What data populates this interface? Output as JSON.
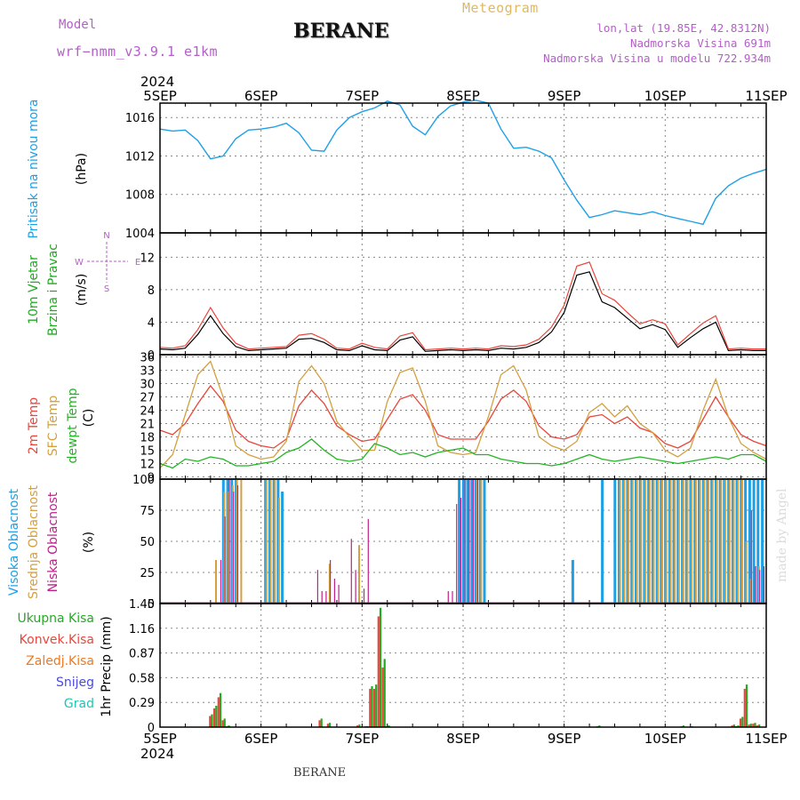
{
  "header": {
    "model_label": "Model",
    "model_name": "wrf−nmm_v3.9.1  e1km",
    "station": "BERANE",
    "meteogram_label": "Meteogram",
    "coords": "lon,lat (19.85E, 42.8312N)",
    "elevation": "Nadmorska Visina 691m",
    "model_elevation": "Nadmorska Visina u modelu 722.934m"
  },
  "footer": {
    "station": "BERANE",
    "made_by": "made by Angel"
  },
  "time_axis": {
    "year": "2024",
    "ticks": [
      "5SEP",
      "6SEP",
      "7SEP",
      "8SEP",
      "9SEP",
      "10SEP",
      "11SEP"
    ]
  },
  "colors": {
    "pressure": "#1ea0e6",
    "temp2m": "#e8463c",
    "sfc_temp": "#d4a040",
    "dewpoint": "#22b422",
    "high_cloud": "#1ea0e6",
    "mid_cloud": "#d4a040",
    "low_cloud": "#c0208c",
    "total_precip": "#22aa22",
    "conv_precip": "#e8463c",
    "frozen_precip": "#f07820",
    "snow": "#4a4ae0",
    "hail": "#22c4b4",
    "wind_label": "#22aa22",
    "wind_compass": "#b45ec9"
  },
  "panel_labels": {
    "pressure": [
      "Pritisak na nivou mora",
      "(hPa)"
    ],
    "wind": [
      "10m Vjetar",
      "Brzina i Pravac",
      "(m/s)"
    ],
    "compass": [
      "N",
      "W",
      "E",
      "S"
    ],
    "temp": [
      "2m Temp",
      "SFC Temp",
      "dewpt Temp",
      "(C)"
    ],
    "cloud": [
      "Visoka Oblacnost",
      "Srednja Oblacnost",
      "Niska Oblacnost",
      "(%)"
    ],
    "precip_legend": [
      "Ukupna Kisa",
      "Konvek.Kisa",
      "Zaledj.Kisa",
      "Snijeg",
      "Grad"
    ],
    "precip_unit": "1hr Precip (mm)"
  },
  "chart_data": [
    {
      "type": "line",
      "panel": "pressure",
      "ylabel": "Pritisak na nivou mora (hPa)",
      "y_tick_labels": [
        "1004",
        "1008",
        "1012",
        "1016"
      ],
      "ylim": [
        1004,
        1017.5
      ],
      "x": [
        0,
        3,
        6,
        9,
        12,
        15,
        18,
        21,
        24,
        27,
        30,
        33,
        36,
        39,
        42,
        45,
        48,
        51,
        54,
        57,
        60,
        63,
        66,
        69,
        72,
        75,
        78,
        81,
        84,
        87,
        90,
        93,
        96,
        99,
        102,
        105,
        108,
        111,
        114,
        117,
        120,
        123,
        126,
        129,
        132,
        135,
        138,
        141,
        144
      ],
      "series": [
        {
          "name": "Pritisak na nivou mora",
          "values": [
            1014.8,
            1014.6,
            1014.7,
            1013.6,
            1011.7,
            1012.0,
            1013.8,
            1014.7,
            1014.8,
            1015.0,
            1015.4,
            1014.4,
            1012.6,
            1012.5,
            1014.7,
            1016.0,
            1016.6,
            1017.0,
            1017.7,
            1017.3,
            1015.1,
            1014.2,
            1016.1,
            1017.2,
            1017.6,
            1017.8,
            1017.5,
            1014.8,
            1012.8,
            1012.9,
            1012.5,
            1011.8,
            1009.5,
            1007.4,
            1005.6,
            1005.9,
            1006.3,
            1006.1,
            1005.9,
            1006.2,
            1005.8,
            1005.5,
            1005.2,
            1004.9,
            1007.6,
            1008.9,
            1009.7,
            1010.2,
            1010.6
          ]
        }
      ],
      "grid": true
    },
    {
      "type": "line",
      "panel": "wind",
      "ylabel": "10m Vjetar Brzina i Pravac (m/s)",
      "y_tick_labels": [
        "0",
        "4",
        "8",
        "12"
      ],
      "ylim": [
        0,
        15
      ],
      "x": [
        0,
        3,
        6,
        9,
        12,
        15,
        18,
        21,
        24,
        27,
        30,
        33,
        36,
        39,
        42,
        45,
        48,
        51,
        54,
        57,
        60,
        63,
        66,
        69,
        72,
        75,
        78,
        81,
        84,
        87,
        90,
        93,
        96,
        99,
        102,
        105,
        108,
        111,
        114,
        117,
        120,
        123,
        126,
        129,
        132,
        135,
        138,
        141,
        144
      ],
      "series": [
        {
          "name": "10m Vjetar",
          "values": [
            0.7,
            0.6,
            0.8,
            2.5,
            4.8,
            2.6,
            1.0,
            0.5,
            0.6,
            0.7,
            0.8,
            1.9,
            2.0,
            1.5,
            0.6,
            0.5,
            1.1,
            0.6,
            0.5,
            1.8,
            2.2,
            0.4,
            0.5,
            0.6,
            0.5,
            0.6,
            0.5,
            0.8,
            0.7,
            0.9,
            1.5,
            2.8,
            5.2,
            9.8,
            10.2,
            6.5,
            5.8,
            4.5,
            3.2,
            3.7,
            3.1,
            0.9,
            2.1,
            3.2,
            4.0,
            0.5,
            0.6,
            0.5,
            0.5
          ]
        },
        {
          "name": "10m Vjetar",
          "values": [
            0.9,
            0.8,
            1.1,
            3.1,
            5.8,
            3.3,
            1.4,
            0.7,
            0.8,
            0.9,
            1.0,
            2.4,
            2.6,
            1.9,
            0.8,
            0.7,
            1.4,
            0.9,
            0.7,
            2.3,
            2.7,
            0.6,
            0.7,
            0.8,
            0.7,
            0.8,
            0.7,
            1.1,
            1.0,
            1.2,
            1.9,
            3.4,
            6.1,
            10.9,
            11.4,
            7.5,
            6.7,
            5.2,
            3.8,
            4.3,
            3.8,
            1.2,
            2.6,
            3.9,
            4.8,
            0.7,
            0.8,
            0.7,
            0.7
          ]
        }
      ],
      "grid": true
    },
    {
      "type": "line",
      "panel": "temperature",
      "ylabel": "(C)",
      "y_tick_labels": [
        "9",
        "12",
        "15",
        "18",
        "21",
        "24",
        "27",
        "30",
        "33",
        "36"
      ],
      "ylim": [
        8.5,
        36.5
      ],
      "x": [
        0,
        3,
        6,
        9,
        12,
        15,
        18,
        21,
        24,
        27,
        30,
        33,
        36,
        39,
        42,
        45,
        48,
        51,
        54,
        57,
        60,
        63,
        66,
        69,
        72,
        75,
        78,
        81,
        84,
        87,
        90,
        93,
        96,
        99,
        102,
        105,
        108,
        111,
        114,
        117,
        120,
        123,
        126,
        129,
        132,
        135,
        138,
        141,
        144
      ],
      "series": [
        {
          "name": "2m Temp",
          "values": [
            19.5,
            18.5,
            21,
            25.5,
            29.5,
            26,
            19.5,
            17,
            16,
            15.5,
            17.5,
            25,
            28.5,
            25.5,
            20.5,
            18.5,
            17,
            17.5,
            22,
            26.5,
            27.5,
            24,
            18.5,
            17.5,
            17.5,
            17.5,
            21.5,
            26.5,
            28.5,
            26,
            20.5,
            18,
            17.5,
            18.5,
            22.5,
            23,
            21,
            22.5,
            20,
            19,
            16.5,
            15.5,
            17,
            22,
            27,
            22.5,
            18.5,
            17,
            16
          ]
        },
        {
          "name": "SFC Temp",
          "values": [
            11,
            14,
            23,
            32,
            35,
            27,
            16,
            14,
            13,
            13.5,
            17,
            30.5,
            34,
            30,
            21.5,
            18,
            15,
            15,
            26,
            32.5,
            33.5,
            26,
            16,
            14.5,
            14,
            14.5,
            22.5,
            32,
            34,
            28.5,
            18,
            16,
            15,
            17,
            23.5,
            25.5,
            22.5,
            25,
            21,
            19,
            15,
            13.5,
            15.5,
            24,
            31,
            22.5,
            16.5,
            14.5,
            13
          ]
        },
        {
          "name": "dewpt Temp",
          "values": [
            12,
            11,
            13,
            12.5,
            13.5,
            13,
            11.5,
            11.5,
            12,
            12.5,
            14.5,
            15.5,
            17.5,
            15,
            13,
            12.5,
            13,
            16.5,
            15.5,
            14,
            14.5,
            13.5,
            14.5,
            15,
            15.5,
            14,
            14,
            13,
            12.5,
            12,
            12,
            11.5,
            12,
            13,
            14,
            13,
            12.5,
            13,
            13.5,
            13,
            12.5,
            12,
            12.5,
            13,
            13.5,
            13,
            14,
            14,
            12.5
          ]
        }
      ],
      "grid": true
    },
    {
      "type": "bar",
      "panel": "cloud",
      "ylabel": "(%)",
      "y_tick_labels": [
        "0",
        "25",
        "50",
        "75",
        "100"
      ],
      "ylim": [
        0,
        100
      ],
      "x": [
        12,
        13,
        14,
        15,
        16,
        17,
        18,
        19,
        20,
        21,
        22,
        25,
        26,
        27,
        28,
        29,
        37,
        38,
        39,
        40,
        41,
        42,
        45,
        46,
        47,
        48,
        49,
        51,
        52,
        53,
        57,
        68,
        69,
        70,
        71,
        72,
        73,
        74,
        75,
        76,
        77,
        78,
        79,
        98,
        105,
        108,
        109,
        110,
        111,
        112,
        113,
        114,
        115,
        116,
        117,
        118,
        119,
        120,
        121,
        122,
        123,
        124,
        125,
        126,
        127,
        128,
        129,
        130,
        131,
        132,
        133,
        134,
        135,
        136,
        137,
        138,
        139,
        140,
        141,
        142,
        143
      ],
      "series": [
        {
          "name": "Visoka Oblacnost",
          "values": [
            0,
            0,
            0,
            100,
            100,
            100,
            100,
            0,
            0,
            0,
            0,
            100,
            100,
            100,
            100,
            90,
            0,
            0,
            0,
            0,
            0,
            0,
            0,
            0,
            0,
            0,
            0,
            0,
            0,
            0,
            0,
            0,
            0,
            0,
            100,
            100,
            100,
            100,
            100,
            100,
            100,
            0,
            0,
            35,
            100,
            100,
            100,
            100,
            100,
            100,
            100,
            100,
            100,
            100,
            100,
            100,
            100,
            100,
            100,
            100,
            100,
            100,
            100,
            100,
            100,
            100,
            100,
            100,
            100,
            100,
            100,
            100,
            100,
            100,
            100,
            100,
            100,
            100,
            100,
            100,
            100
          ]
        },
        {
          "name": "Srednja Oblacnost",
          "values": [
            0,
            35,
            0,
            90,
            90,
            95,
            100,
            100,
            0,
            0,
            0,
            100,
            100,
            100,
            85,
            0,
            0,
            0,
            0,
            32,
            0,
            0,
            0,
            0,
            47,
            0,
            0,
            0,
            0,
            0,
            0,
            0,
            0,
            0,
            0,
            0,
            0,
            0,
            100,
            100,
            0,
            0,
            0,
            0,
            0,
            0,
            100,
            100,
            100,
            100,
            100,
            100,
            100,
            100,
            100,
            100,
            100,
            100,
            100,
            100,
            100,
            100,
            100,
            100,
            100,
            100,
            100,
            100,
            100,
            100,
            100,
            100,
            100,
            100,
            100,
            100,
            50,
            20,
            0,
            30,
            0
          ]
        },
        {
          "name": "Niska Oblacnost",
          "values": [
            0,
            0,
            35,
            70,
            100,
            90,
            95,
            0,
            0,
            0,
            0,
            0,
            0,
            0,
            0,
            0,
            27,
            10,
            10,
            35,
            20,
            15,
            52,
            27,
            0,
            12,
            68,
            0,
            0,
            0,
            0,
            10,
            10,
            80,
            85,
            100,
            100,
            100,
            100,
            0,
            0,
            0,
            0,
            0,
            0,
            0,
            0,
            0,
            0,
            0,
            0,
            0,
            0,
            0,
            0,
            0,
            0,
            0,
            0,
            0,
            0,
            0,
            0,
            0,
            0,
            0,
            0,
            0,
            0,
            0,
            0,
            0,
            0,
            0,
            0,
            0,
            0,
            75,
            30,
            27,
            30
          ]
        }
      ]
    },
    {
      "type": "bar",
      "panel": "precip",
      "ylabel": "1hr Precip (mm)",
      "y_tick_labels": [
        "0",
        "0.29",
        "0.58",
        "0.87",
        "1.16",
        "1.45"
      ],
      "ylim": [
        0,
        1.45
      ],
      "x": [
        12,
        13,
        14,
        15,
        16,
        38,
        40,
        47,
        49,
        50,
        51,
        52,
        53,
        54,
        104,
        124,
        126,
        136,
        137,
        138,
        139,
        140,
        141,
        142
      ],
      "series": [
        {
          "name": "Ukupna Kisa",
          "values": [
            0.15,
            0.25,
            0.4,
            0.1,
            0.02,
            0.1,
            0.05,
            0.03,
            0.01,
            0.48,
            0.5,
            1.4,
            0.8,
            0.02,
            0.02,
            0.02,
            0.01,
            0.03,
            0.02,
            0.12,
            0.5,
            0.04,
            0.05,
            0.03
          ]
        },
        {
          "name": "Konvek.Kisa",
          "values": [
            0.13,
            0.22,
            0.35,
            0.08,
            0.01,
            0.08,
            0.04,
            0.02,
            0.01,
            0.45,
            0.45,
            1.3,
            0.7,
            0.01,
            0.01,
            0.01,
            0.0,
            0.02,
            0.01,
            0.1,
            0.45,
            0.03,
            0.04,
            0.02
          ]
        }
      ]
    }
  ]
}
